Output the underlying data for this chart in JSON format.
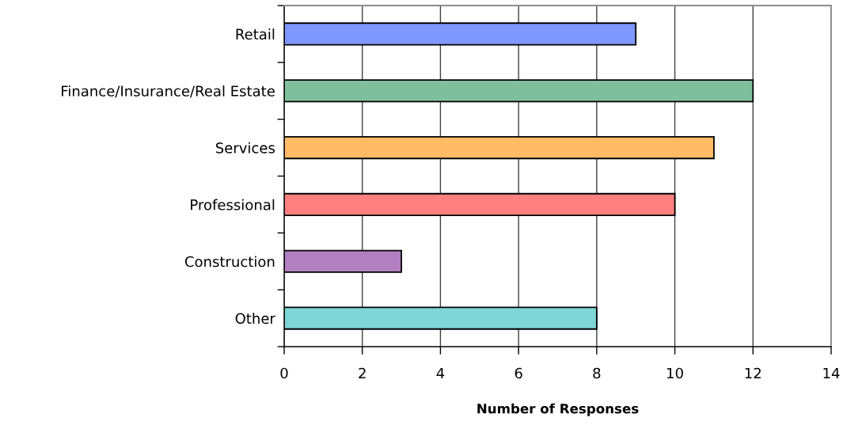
{
  "chart_data": {
    "type": "bar",
    "orientation": "horizontal",
    "categories": [
      "Retail",
      "Finance/Insurance/Real Estate",
      "Services",
      "Professional",
      "Construction",
      "Other"
    ],
    "values": [
      9,
      12,
      11,
      10,
      3,
      8
    ],
    "colors": [
      "#7f98ff",
      "#7fbf9e",
      "#ffbb66",
      "#ff8080",
      "#b27fc0",
      "#7fd6d6"
    ],
    "xlim": [
      0,
      14
    ],
    "xticks": [
      0,
      2,
      4,
      6,
      8,
      10,
      12,
      14
    ],
    "xlabel": "Number of Responses",
    "grid": "x"
  }
}
